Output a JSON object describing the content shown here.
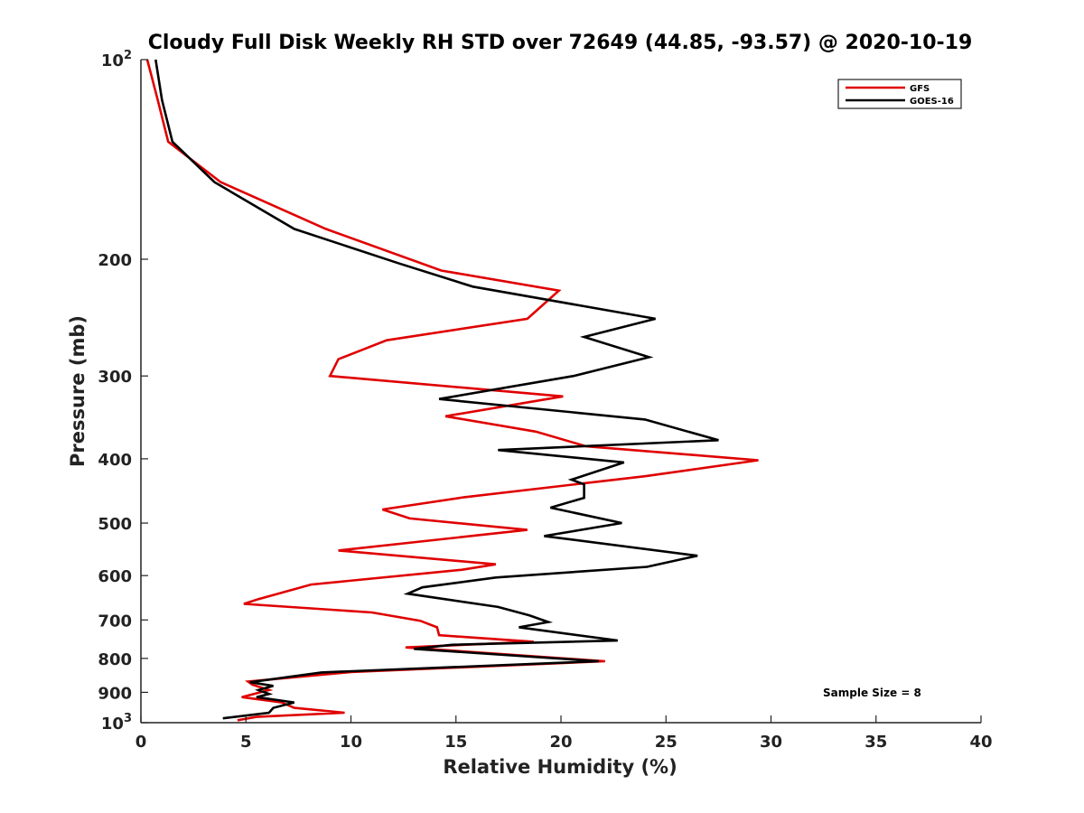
{
  "chart_data": {
    "type": "line",
    "title": "Cloudy Full Disk Weekly RH STD over 72649 (44.85, -93.57) @ 2020-10-19",
    "xlabel": "Relative Humidity (%)",
    "ylabel": "Pressure (mb)",
    "xlim": [
      0,
      40
    ],
    "ylim": [
      100,
      1000
    ],
    "y_scale": "log",
    "y_reversed": true,
    "grid": false,
    "legend_position": "top-right",
    "x_ticks": [
      {
        "value": 0,
        "label": "0"
      },
      {
        "value": 5,
        "label": "5"
      },
      {
        "value": 10,
        "label": "10"
      },
      {
        "value": 15,
        "label": "15"
      },
      {
        "value": 20,
        "label": "20"
      },
      {
        "value": 25,
        "label": "25"
      },
      {
        "value": 30,
        "label": "30"
      },
      {
        "value": 35,
        "label": "35"
      },
      {
        "value": 40,
        "label": "40"
      }
    ],
    "y_ticks": [
      {
        "value": 100,
        "base": "10",
        "exp": "2"
      },
      {
        "value": 200,
        "label": "200"
      },
      {
        "value": 300,
        "label": "300"
      },
      {
        "value": 400,
        "label": "400"
      },
      {
        "value": 500,
        "label": "500"
      },
      {
        "value": 600,
        "label": "600"
      },
      {
        "value": 700,
        "label": "700"
      },
      {
        "value": 800,
        "label": "800"
      },
      {
        "value": 900,
        "label": "900"
      },
      {
        "value": 1000,
        "base": "10",
        "exp": "3"
      }
    ],
    "annotation": "Sample Size = 8",
    "series": [
      {
        "name": "GFS",
        "color": "#e00000",
        "points": [
          [
            0.3,
            100
          ],
          [
            0.8,
            115
          ],
          [
            1.3,
            133
          ],
          [
            3.8,
            153
          ],
          [
            8.8,
            180
          ],
          [
            14.3,
            208
          ],
          [
            19.9,
            223
          ],
          [
            18.4,
            246
          ],
          [
            11.7,
            265
          ],
          [
            9.4,
            283
          ],
          [
            9.0,
            300
          ],
          [
            20.1,
            322
          ],
          [
            14.5,
            345
          ],
          [
            18.8,
            364
          ],
          [
            21.2,
            383
          ],
          [
            29.4,
            402
          ],
          [
            24.0,
            425
          ],
          [
            15.4,
            457
          ],
          [
            11.5,
            477
          ],
          [
            12.8,
            492
          ],
          [
            18.4,
            512
          ],
          [
            9.4,
            550
          ],
          [
            16.9,
            577
          ],
          [
            15.3,
            588
          ],
          [
            8.1,
            619
          ],
          [
            5.6,
            651
          ],
          [
            4.9,
            662
          ],
          [
            11.0,
            682
          ],
          [
            13.3,
            702
          ],
          [
            14.1,
            718
          ],
          [
            14.2,
            738
          ],
          [
            18.7,
            755
          ],
          [
            12.6,
            770
          ],
          [
            22.1,
            808
          ],
          [
            10.0,
            839
          ],
          [
            5.1,
            867
          ],
          [
            5.3,
            876
          ],
          [
            6.1,
            893
          ],
          [
            4.8,
            915
          ],
          [
            6.7,
            932
          ],
          [
            7.3,
            950
          ],
          [
            9.7,
            966
          ],
          [
            5.5,
            980
          ],
          [
            4.6,
            992
          ]
        ]
      },
      {
        "name": "GOES-16",
        "color": "#000000",
        "points": [
          [
            0.7,
            100
          ],
          [
            1.0,
            115
          ],
          [
            1.5,
            133
          ],
          [
            3.5,
            153
          ],
          [
            7.3,
            180
          ],
          [
            12.3,
            203
          ],
          [
            15.8,
            220
          ],
          [
            24.5,
            246
          ],
          [
            21.1,
            262
          ],
          [
            24.2,
            281
          ],
          [
            20.6,
            300
          ],
          [
            14.2,
            325
          ],
          [
            24.0,
            349
          ],
          [
            27.5,
            375
          ],
          [
            17.0,
            388
          ],
          [
            23.0,
            405
          ],
          [
            20.5,
            430
          ],
          [
            21.1,
            437
          ],
          [
            21.1,
            458
          ],
          [
            19.5,
            474
          ],
          [
            22.9,
            500
          ],
          [
            19.2,
            523
          ],
          [
            26.5,
            560
          ],
          [
            24.1,
            582
          ],
          [
            16.9,
            604
          ],
          [
            13.4,
            625
          ],
          [
            12.7,
            639
          ],
          [
            17.0,
            669
          ],
          [
            18.5,
            689
          ],
          [
            19.4,
            705
          ],
          [
            18.0,
            718
          ],
          [
            22.7,
            752
          ],
          [
            14.8,
            763
          ],
          [
            13.0,
            774
          ],
          [
            21.8,
            808
          ],
          [
            8.6,
            840
          ],
          [
            5.2,
            869
          ],
          [
            6.3,
            880
          ],
          [
            5.6,
            893
          ],
          [
            6.1,
            905
          ],
          [
            5.5,
            915
          ],
          [
            7.3,
            932
          ],
          [
            6.3,
            950
          ],
          [
            6.1,
            966
          ],
          [
            3.9,
            985
          ]
        ]
      }
    ]
  }
}
